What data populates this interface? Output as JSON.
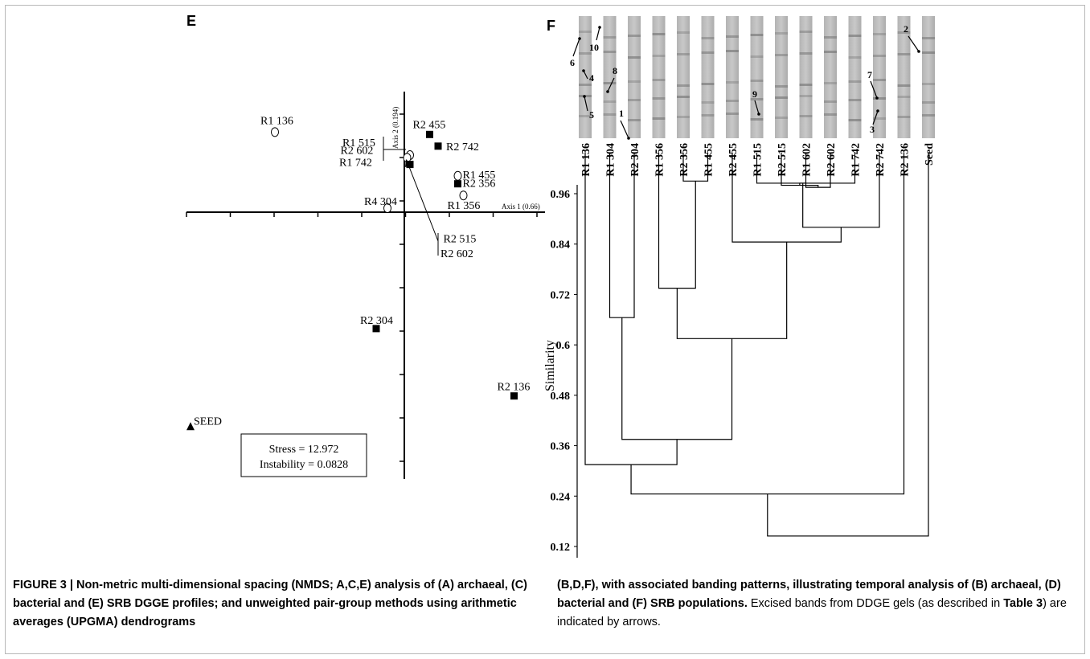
{
  "panel_e_label": "E",
  "panel_f_label": "F",
  "chart_data": [
    {
      "type": "scatter",
      "panel": "E",
      "xlabel": "Axis 1 (0.66)",
      "ylabel": "Axis 2 (0.194)",
      "stress_text": "Stress = 12.972",
      "instability_text": "Instability = 0.0828",
      "points": [
        {
          "label": "R1 136",
          "x": -0.46,
          "y": 0.302,
          "marker": "circle"
        },
        {
          "label": "R2 455",
          "x": 0.09,
          "y": 0.293,
          "marker": "square"
        },
        {
          "label": "R2 742",
          "x": 0.12,
          "y": 0.249,
          "marker": "square"
        },
        {
          "label": "R1 515",
          "x": 0.02,
          "y": 0.215,
          "marker": "circle"
        },
        {
          "label": "R2 602",
          "x": 0.01,
          "y": 0.205,
          "marker": "circle"
        },
        {
          "label": "R1 742",
          "x": 0.02,
          "y": 0.18,
          "marker": "square"
        },
        {
          "label": "R1 455",
          "x": 0.19,
          "y": 0.137,
          "marker": "circle"
        },
        {
          "label": "R2 356",
          "x": 0.19,
          "y": 0.107,
          "marker": "square"
        },
        {
          "label": "R1 356",
          "x": 0.21,
          "y": 0.063,
          "marker": "circle"
        },
        {
          "label": "R4 304",
          "x": -0.06,
          "y": 0.015,
          "marker": "circle"
        },
        {
          "label": "R2 515",
          "x": 0.01,
          "y": 0.195,
          "marker": "square"
        },
        {
          "label": "R2 304",
          "x": -0.1,
          "y": -0.439,
          "marker": "square"
        },
        {
          "label": "R2 136",
          "x": 0.39,
          "y": -0.693,
          "marker": "square"
        },
        {
          "label": "SEED",
          "x": -0.76,
          "y": -0.81,
          "marker": "triangle"
        }
      ]
    },
    {
      "type": "dendrogram",
      "panel": "F",
      "ylabel": "Similarity",
      "yticks": [
        0.96,
        0.84,
        0.72,
        0.6,
        0.48,
        0.36,
        0.24,
        0.12
      ],
      "ylim": [
        0.096,
        1.0
      ],
      "leaves": [
        "R1 136",
        "R1 304",
        "R2 304",
        "R1 356",
        "R2 356",
        "R1 455",
        "R2 455",
        "R1 515",
        "R2 515",
        "R1 602",
        "R2 602",
        "R1 742",
        "R2 742",
        "R2 136",
        "Seed"
      ],
      "merges": [
        {
          "id": "A",
          "a": "L7",
          "b": "L11",
          "h": 0.985
        },
        {
          "id": "B",
          "a": "A",
          "b": "L10",
          "h": 0.975
        },
        {
          "id": "C",
          "a": "B",
          "b": "L8",
          "h": 0.98
        },
        {
          "id": "D",
          "a": "C",
          "b": "L9",
          "h": 0.985
        },
        {
          "id": "E",
          "a": "L4",
          "b": "L5",
          "h": 0.99
        },
        {
          "id": "F",
          "a": "D",
          "b": "L12",
          "h": 0.88
        },
        {
          "id": "G",
          "a": "L6",
          "b": "F",
          "h": 0.845
        },
        {
          "id": "H",
          "a": "L3",
          "b": "E",
          "h": 0.735
        },
        {
          "id": "I",
          "a": "L1",
          "b": "L2",
          "h": 0.665
        },
        {
          "id": "J",
          "a": "H",
          "b": "G",
          "h": 0.615
        },
        {
          "id": "K",
          "a": "I",
          "b": "J",
          "h": 0.375
        },
        {
          "id": "M",
          "a": "L0",
          "b": "K",
          "h": 0.315
        },
        {
          "id": "N",
          "a": "M",
          "b": "L13",
          "h": 0.245
        },
        {
          "id": "O",
          "a": "N",
          "b": "L14",
          "h": 0.145
        }
      ],
      "band_annotations": [
        "1",
        "2",
        "3",
        "4",
        "5",
        "6",
        "7",
        "8",
        "9",
        "10"
      ]
    }
  ],
  "caption": {
    "left_bold": "FIGURE 3 | Non-metric multi-dimensional spacing (NMDS; A,C,E) analysis of (A) archaeal, (C) bacterial and (E) SRB DGGE profiles; and unweighted pair-group methods using arithmetic averages (UPGMA) dendrograms",
    "right_bold": "(B,D,F), with associated banding patterns, illustrating temporal analysis of (B) archaeal, (D) bacterial and (F) SRB populations.",
    "right_normal_1": " Excised bands from DDGE gels (as described in ",
    "right_table_ref": "Table 3",
    "right_normal_2": ") are indicated by arrows."
  }
}
